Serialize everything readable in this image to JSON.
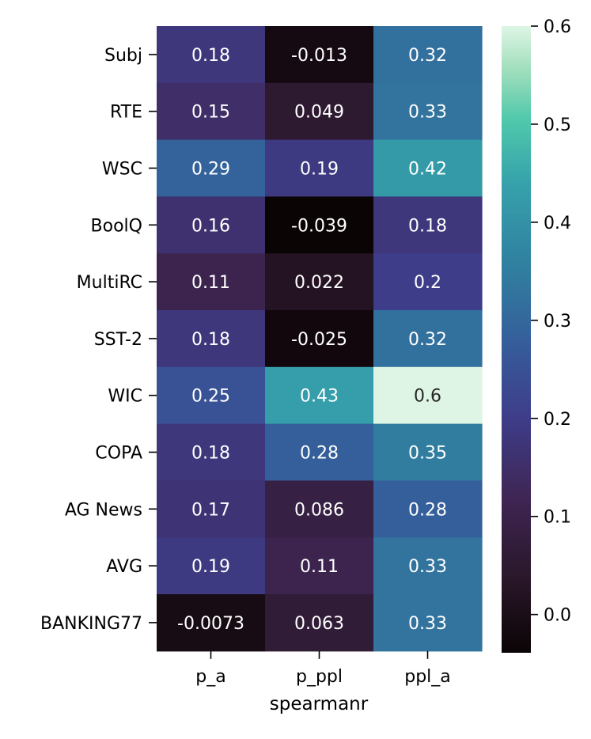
{
  "chart_data": {
    "type": "heatmap",
    "title": "",
    "xlabel": "spearmanr",
    "ylabel": "",
    "columns": [
      "p_a",
      "p_ppl",
      "ppl_a"
    ],
    "rows": [
      "Subj",
      "RTE",
      "WSC",
      "BoolQ",
      "MultiRC",
      "SST-2",
      "WIC",
      "COPA",
      "AG News",
      "AVG",
      "BANKING77"
    ],
    "values": [
      [
        0.18,
        -0.013,
        0.32
      ],
      [
        0.15,
        0.049,
        0.33
      ],
      [
        0.29,
        0.19,
        0.42
      ],
      [
        0.16,
        -0.039,
        0.18
      ],
      [
        0.11,
        0.022,
        0.2
      ],
      [
        0.18,
        -0.025,
        0.32
      ],
      [
        0.25,
        0.43,
        0.6
      ],
      [
        0.18,
        0.28,
        0.35
      ],
      [
        0.17,
        0.086,
        0.28
      ],
      [
        0.19,
        0.11,
        0.33
      ],
      [
        -0.0073,
        0.063,
        0.33
      ]
    ],
    "cell_labels": [
      [
        "0.18",
        "-0.013",
        "0.32"
      ],
      [
        "0.15",
        "0.049",
        "0.33"
      ],
      [
        "0.29",
        "0.19",
        "0.42"
      ],
      [
        "0.16",
        "-0.039",
        "0.18"
      ],
      [
        "0.11",
        "0.022",
        "0.2"
      ],
      [
        "0.18",
        "-0.025",
        "0.32"
      ],
      [
        "0.25",
        "0.43",
        "0.6"
      ],
      [
        "0.18",
        "0.28",
        "0.35"
      ],
      [
        "0.17",
        "0.086",
        "0.28"
      ],
      [
        "0.19",
        "0.11",
        "0.33"
      ],
      [
        "-0.0073",
        "0.063",
        "0.33"
      ]
    ],
    "colorbar": {
      "min": -0.039,
      "max": 0.6,
      "ticks": [
        0.0,
        0.1,
        0.2,
        0.3,
        0.4,
        0.5,
        0.6
      ],
      "tick_labels": [
        "0.0",
        "0.1",
        "0.2",
        "0.3",
        "0.4",
        "0.5",
        "0.6"
      ]
    },
    "colormap": "mako",
    "legend": "colorbar-right",
    "grid": false
  }
}
